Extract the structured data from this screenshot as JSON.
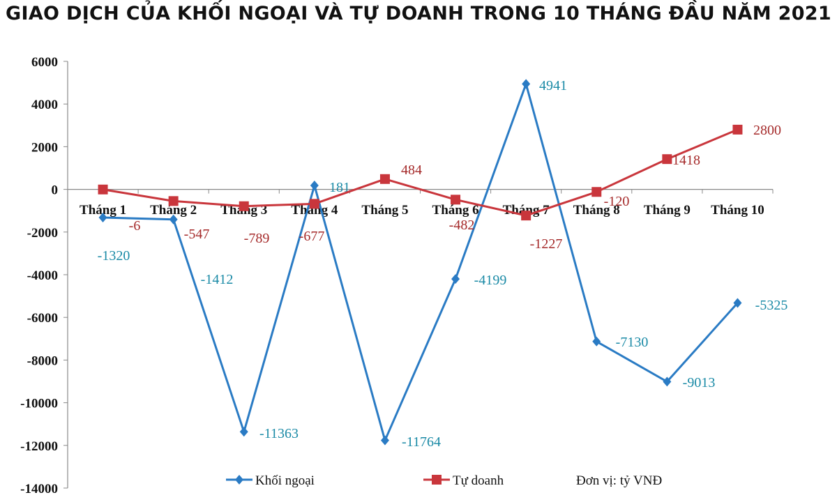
{
  "chart_data": {
    "type": "line",
    "title": "GIAO DỊCH CỦA KHỐI NGOẠI VÀ TỰ DOANH TRONG 10 THÁNG ĐẦU NĂM 2021",
    "categories": [
      "Tháng 1",
      "Tháng 2",
      "Tháng 3",
      "Tháng 4",
      "Tháng 5",
      "Tháng 6",
      "Tháng 7",
      "Tháng 8",
      "Tháng 9",
      "Tháng 10"
    ],
    "series": [
      {
        "name": "Khối ngoại",
        "color": "#2a7bc4",
        "marker": "diamond",
        "values": [
          -1320,
          -1412,
          -11363,
          181,
          -11764,
          -4199,
          4941,
          -7130,
          -9013,
          -5325
        ]
      },
      {
        "name": "Tự doanh",
        "color": "#c9363c",
        "marker": "square",
        "values": [
          -6,
          -547,
          -789,
          -677,
          484,
          -482,
          -1227,
          -120,
          1418,
          2800
        ]
      }
    ],
    "ylim": [
      -14000,
      6000
    ],
    "yticks": [
      6000,
      4000,
      2000,
      0,
      -2000,
      -4000,
      -6000,
      -8000,
      -10000,
      -12000,
      -14000
    ],
    "grid": false,
    "legend": "bottom",
    "unit_note": "Đơn vị: tỷ VNĐ"
  }
}
